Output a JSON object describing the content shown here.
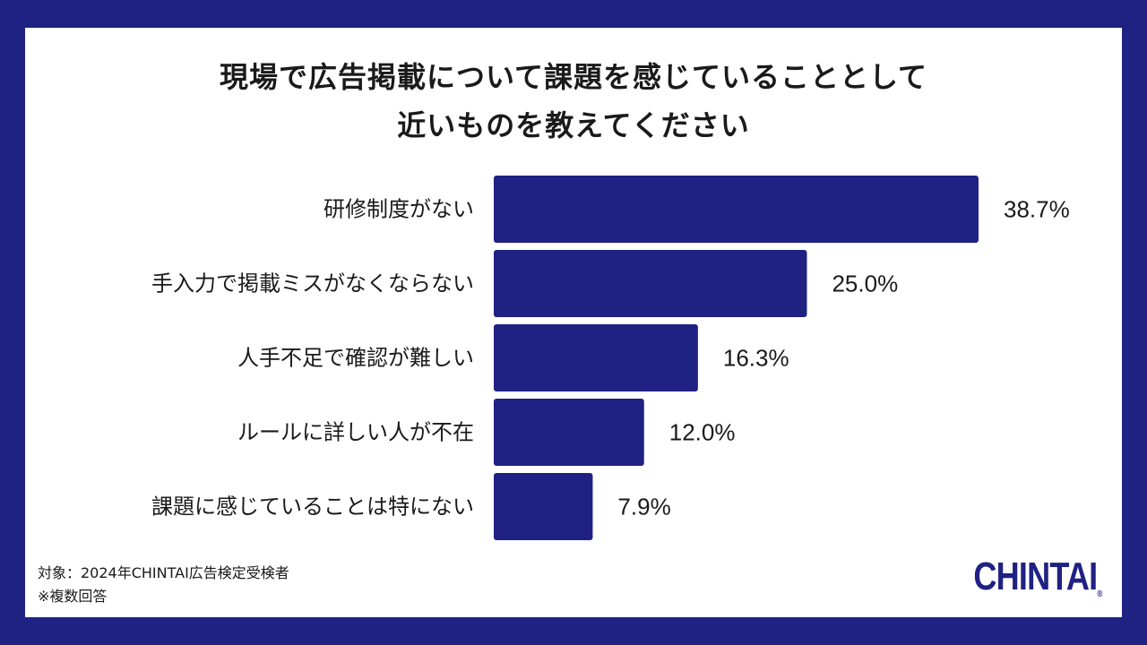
{
  "title_lines": [
    "現場で広告掲載について課題を感じていることとして",
    "近いものを教えてください"
  ],
  "footnote": {
    "target": "対象：2024年CHINTAI広告検定受検者",
    "note": "※複数回答"
  },
  "logo_text": "CHINTAI",
  "colors": {
    "background": "#1f2183",
    "bar": "#1f2183",
    "card": "#ffffff"
  },
  "chart_data": {
    "type": "bar",
    "orientation": "horizontal",
    "categories": [
      "研修制度がない",
      "手入力で掲載ミスがなくならない",
      "人手不足で確認が難しい",
      "ルールに詳しい人が不在",
      "課題に感じていることは特にない"
    ],
    "values": [
      38.7,
      25.0,
      16.3,
      12.0,
      7.9
    ],
    "value_labels": [
      "38.7%",
      "25.0%",
      "16.3%",
      "12.0%",
      "7.9%"
    ],
    "xlim": [
      0,
      38.7
    ]
  }
}
